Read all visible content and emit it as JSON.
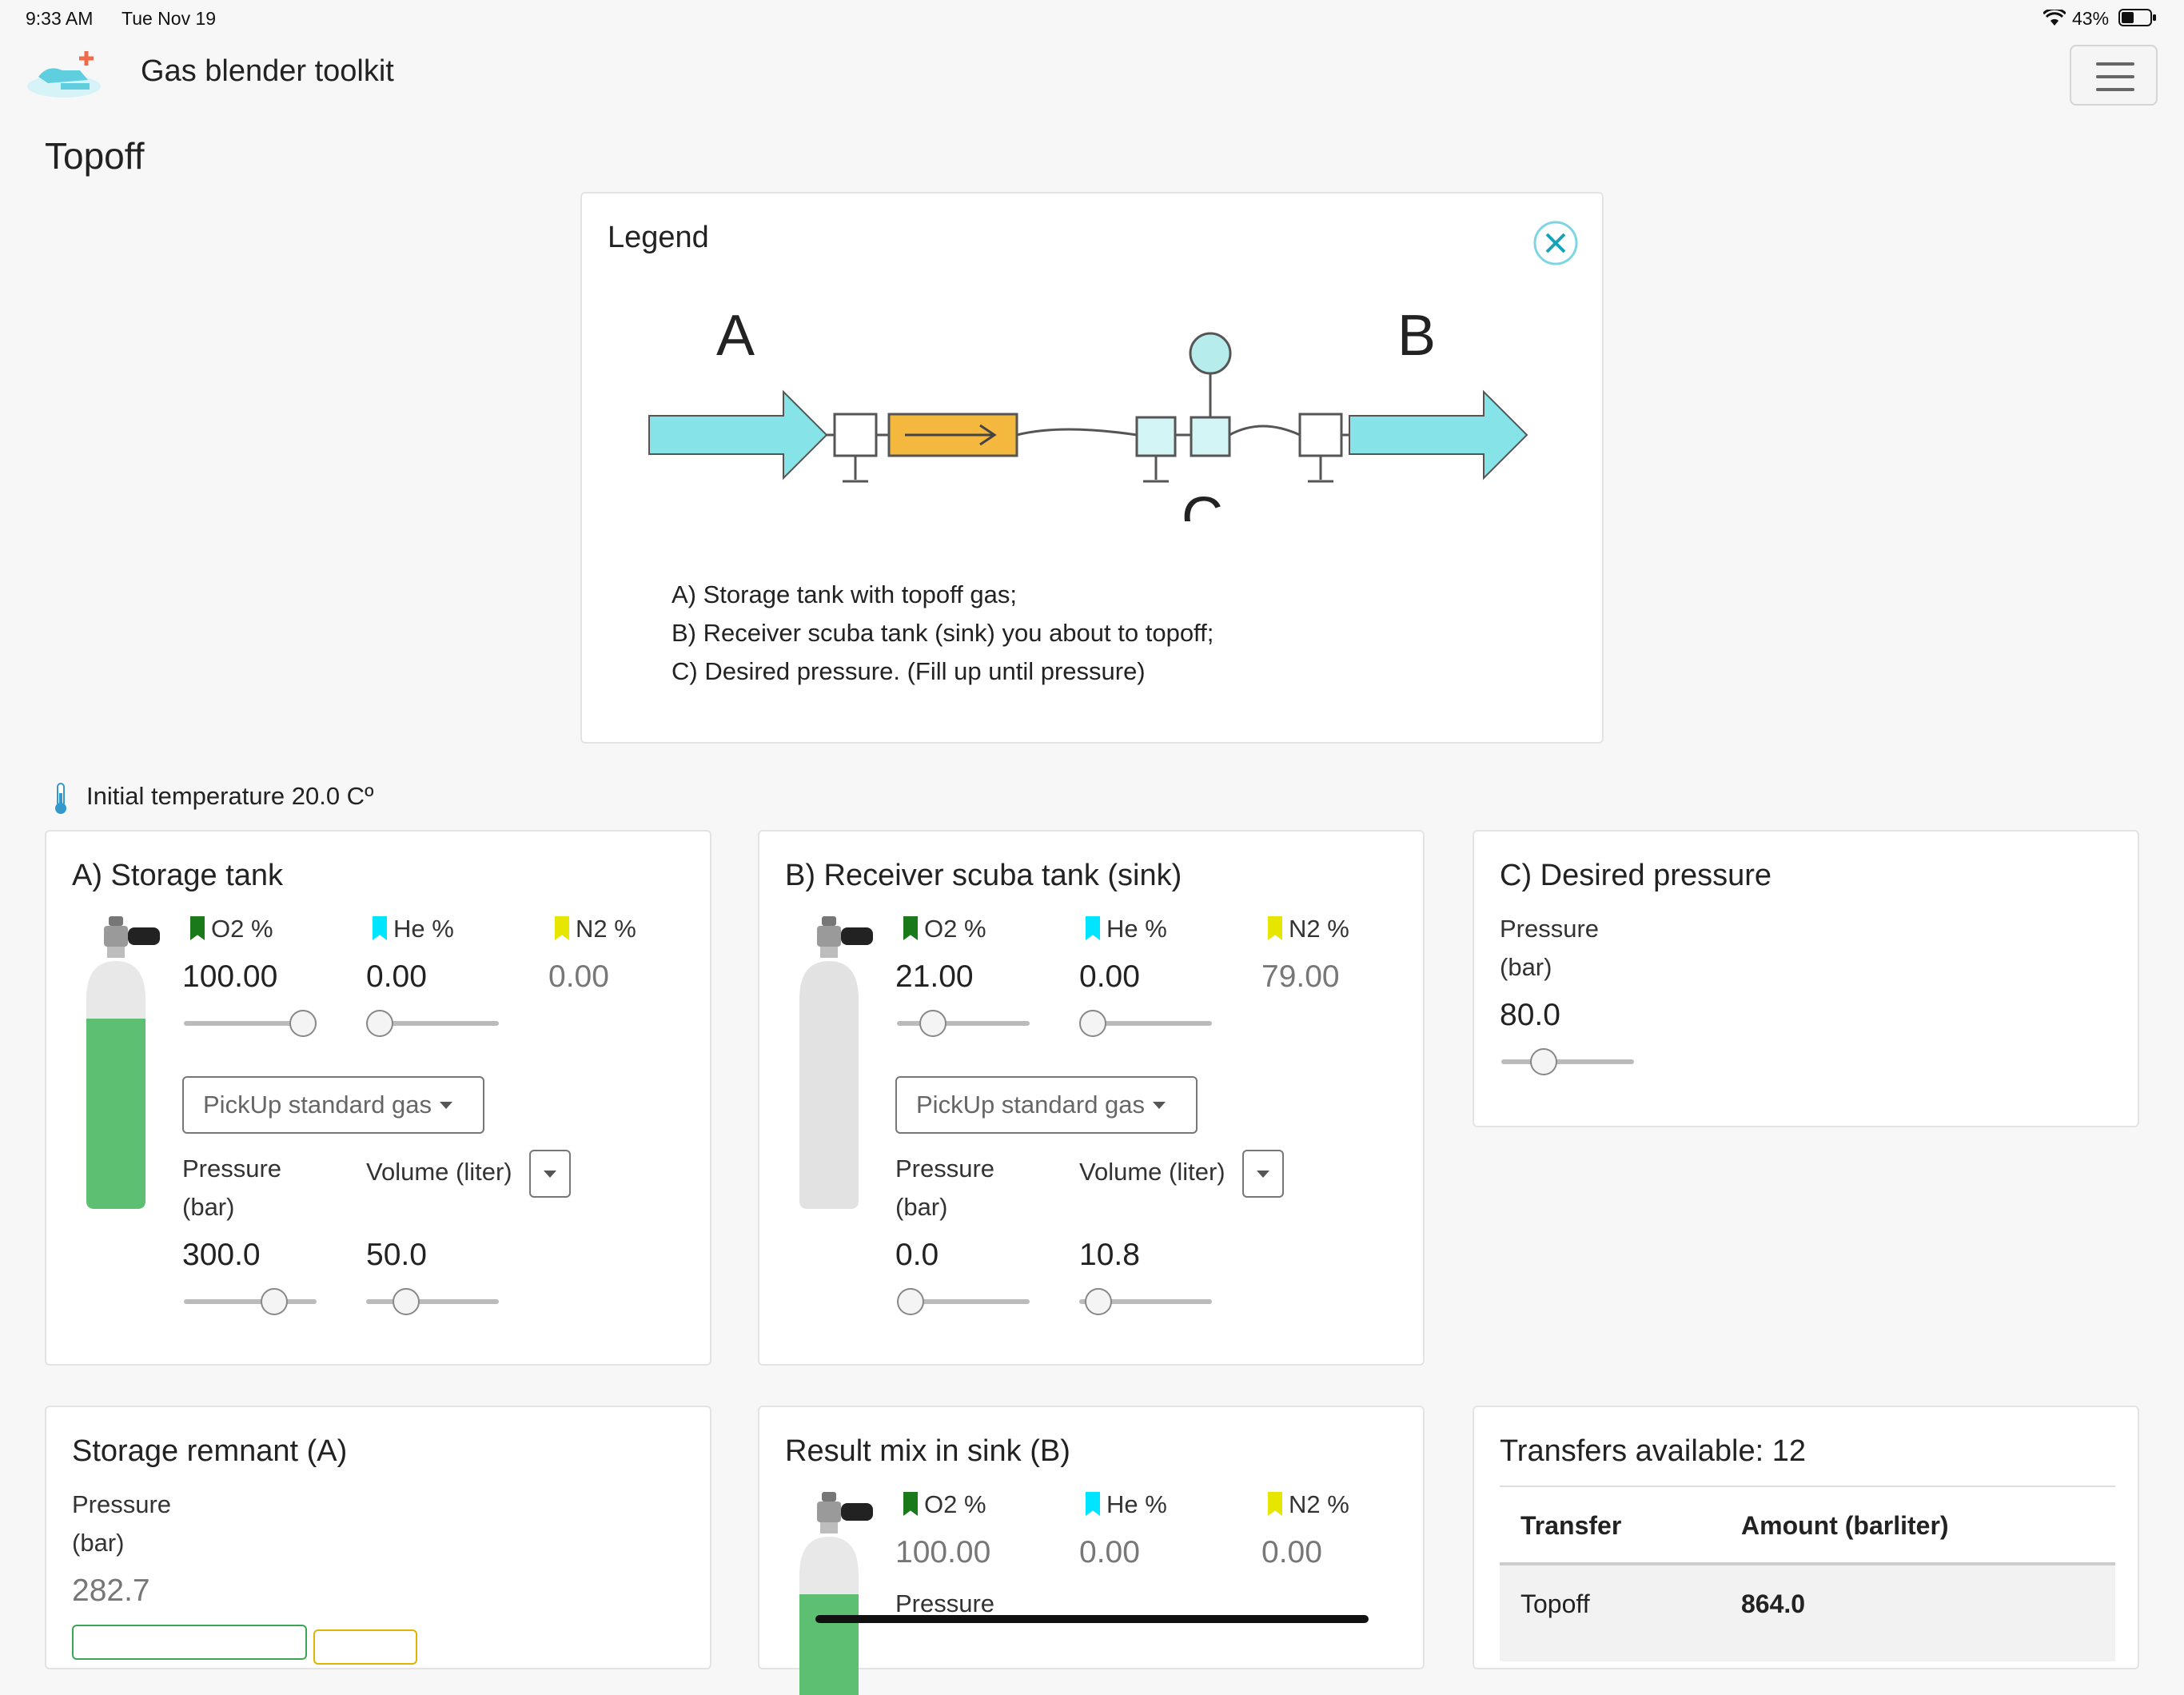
{
  "status_bar": {
    "time": "9:33 AM",
    "date": "Tue Nov 19",
    "battery": "43%"
  },
  "header": {
    "app_title": "Gas blender toolkit"
  },
  "page": {
    "title": "Topoff"
  },
  "legend": {
    "title": "Legend",
    "diagram_labels": {
      "a": "A",
      "b": "B",
      "c": "C"
    },
    "lines": [
      "A) Storage tank with topoff gas;",
      "B) Receiver scuba tank (sink) you about to topoff;",
      "C) Desired pressure. (Fill up until pressure)"
    ]
  },
  "temperature": {
    "label": "Initial temperature 20.0 Cº"
  },
  "storage_tank": {
    "title": "A) Storage tank",
    "o2_label": "O2 %",
    "he_label": "He %",
    "n2_label": "N2 %",
    "o2": "100.00",
    "he": "0.00",
    "n2": "0.00",
    "o2_fraction": 1.0,
    "he_fraction": 0.0,
    "pick_label": "PickUp standard gas",
    "pressure_label_1": "Pressure",
    "pressure_label_2": "(bar)",
    "volume_label": "Volume (liter)",
    "pressure": "300.0",
    "volume": "50.0",
    "pressure_fraction": 0.73,
    "volume_fraction": 0.25,
    "tank_color": "#5cbf72"
  },
  "receiver_tank": {
    "title": "B) Receiver scuba tank (sink)",
    "o2_label": "O2 %",
    "he_label": "He %",
    "n2_label": "N2 %",
    "o2": "21.00",
    "he": "0.00",
    "n2": "79.00",
    "o2_fraction": 0.21,
    "he_fraction": 0.0,
    "pick_label": "PickUp standard gas",
    "pressure_label_1": "Pressure",
    "pressure_label_2": "(bar)",
    "volume_label": "Volume (liter)",
    "pressure": "0.0",
    "volume": "10.8",
    "pressure_fraction": 0.0,
    "volume_fraction": 0.05,
    "tank_color": "#e2e2e2"
  },
  "desired_pressure": {
    "title": "C) Desired pressure",
    "pressure_label_1": "Pressure",
    "pressure_label_2": "(bar)",
    "pressure": "80.0",
    "pressure_fraction": 0.27
  },
  "storage_remnant": {
    "title": "Storage remnant (A)",
    "pressure_label_1": "Pressure",
    "pressure_label_2": "(bar)",
    "pressure": "282.7"
  },
  "result_mix": {
    "title": "Result mix in sink (B)",
    "o2_label": "O2 %",
    "he_label": "He %",
    "n2_label": "N2 %",
    "o2": "100.00",
    "he": "0.00",
    "n2": "0.00",
    "pressure_label_1": "Pressure"
  },
  "transfers": {
    "title": "Transfers available: 12",
    "col_transfer": "Transfer",
    "col_amount": "Amount (barliter)",
    "rows": [
      {
        "transfer": "Topoff",
        "amount": "864.0"
      }
    ]
  },
  "colors": {
    "o2_flag": "#1a7a1a",
    "he_flag": "#00e5ff",
    "n2_flag": "#e6e600",
    "accent": "#17a2b8",
    "flow_arrow": "#86e3e8",
    "flow_box": "#f4b83f"
  }
}
